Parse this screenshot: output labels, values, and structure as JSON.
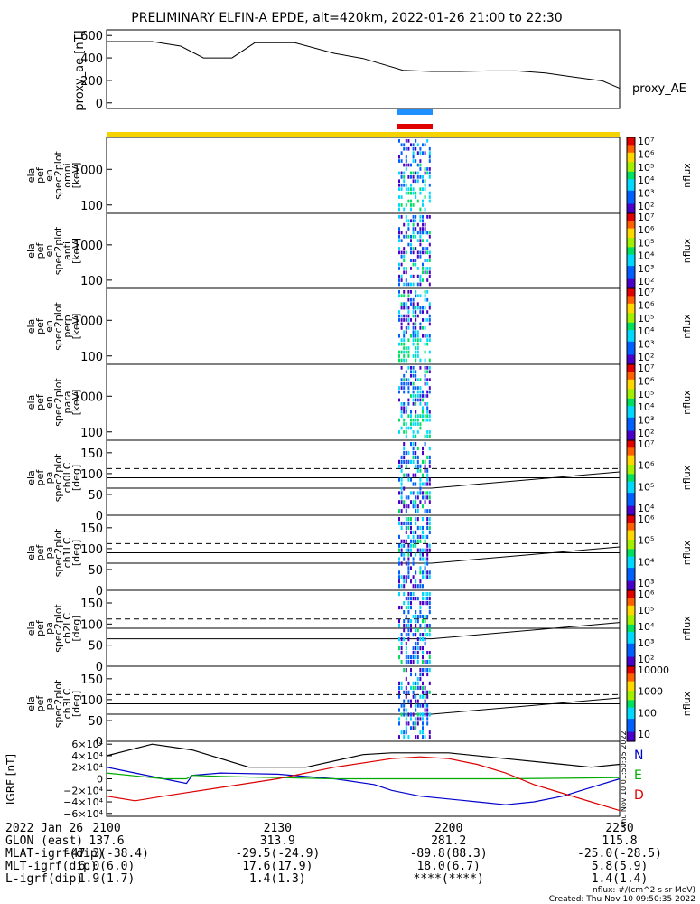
{
  "title": "PRELIMINARY ELFIN-A EPDE, alt=420km, 2022-01-26 21:00 to 22:30",
  "colors": {
    "bar_blue": "#1e90ff",
    "bar_red": "#e00000",
    "bar_yellow": "#f5d300",
    "field_N": "#0000cc",
    "field_E": "#00aa00",
    "field_D": "#dd0000",
    "field_total": "#000000"
  },
  "chart_data": [
    {
      "type": "line",
      "name": "proxy_ae",
      "ylabel": "proxy_ae [nT]",
      "legend": "proxy_AE",
      "ylim": [
        -50,
        650
      ],
      "yticks": [
        "600",
        "400",
        "200",
        "0"
      ],
      "x": [
        0,
        8,
        13,
        17,
        22,
        26,
        33,
        40,
        45,
        52,
        57,
        62,
        67,
        72,
        77,
        82,
        87,
        90
      ],
      "y": [
        545,
        545,
        505,
        400,
        400,
        535,
        535,
        440,
        395,
        290,
        280,
        280,
        285,
        285,
        265,
        230,
        195,
        130
      ]
    },
    {
      "type": "heatmap",
      "name": "omni",
      "ylabel": [
        "ela",
        "pef",
        "en",
        "spec2plot",
        "omni",
        "[keV]"
      ],
      "yticks": [
        "1000",
        "100"
      ],
      "colorbar": {
        "label": "nflux",
        "ticks": [
          "10⁷",
          "10⁶",
          "10⁵",
          "10⁴",
          "10³",
          "10²"
        ]
      }
    },
    {
      "type": "heatmap",
      "name": "anti",
      "ylabel": [
        "ela",
        "pef",
        "en",
        "spec2plot",
        "anti",
        "[keV]"
      ],
      "yticks": [
        "1000",
        "100"
      ],
      "colorbar": {
        "label": "nflux",
        "ticks": [
          "10⁷",
          "10⁶",
          "10⁵",
          "10⁴",
          "10³",
          "10²"
        ]
      }
    },
    {
      "type": "heatmap",
      "name": "perp",
      "ylabel": [
        "ela",
        "pef",
        "en",
        "spec2plot",
        "perp",
        "[keV]"
      ],
      "yticks": [
        "1000",
        "100"
      ],
      "colorbar": {
        "label": "nflux",
        "ticks": [
          "10⁷",
          "10⁶",
          "10⁵",
          "10⁴",
          "10³",
          "10²"
        ]
      }
    },
    {
      "type": "heatmap",
      "name": "para",
      "ylabel": [
        "ela",
        "pef",
        "en",
        "spec2plot",
        "para",
        "[keV]"
      ],
      "yticks": [
        "1000",
        "100"
      ],
      "colorbar": {
        "label": "nflux",
        "ticks": [
          "10⁷",
          "10⁶",
          "10⁵",
          "10⁴",
          "10³",
          "10²"
        ]
      }
    },
    {
      "type": "heatmap",
      "name": "ch0LC",
      "ylabel": [
        "ela",
        "pef",
        "pa",
        "spec2plot",
        "ch0LC",
        "[deg]"
      ],
      "yticks": [
        "150",
        "100",
        "50",
        "0"
      ],
      "colorbar": {
        "label": "nflux",
        "ticks": [
          "10⁷",
          "10⁶",
          "10⁵",
          "10⁴"
        ]
      }
    },
    {
      "type": "heatmap",
      "name": "ch1LC",
      "ylabel": [
        "ela",
        "pef",
        "pa",
        "spec2plot",
        "ch1LC",
        "[deg]"
      ],
      "yticks": [
        "150",
        "100",
        "50",
        "0"
      ],
      "colorbar": {
        "label": "nflux",
        "ticks": [
          "10⁶",
          "10⁵",
          "10⁴",
          "10³"
        ]
      }
    },
    {
      "type": "heatmap",
      "name": "ch2LC",
      "ylabel": [
        "ela",
        "pef",
        "pa",
        "spec2plot",
        "ch2LC",
        "[deg]"
      ],
      "yticks": [
        "150",
        "100",
        "50",
        "0"
      ],
      "colorbar": {
        "label": "nflux",
        "ticks": [
          "10⁶",
          "10⁵",
          "10⁴",
          "10³",
          "10²"
        ]
      }
    },
    {
      "type": "heatmap",
      "name": "ch3LC",
      "ylabel": [
        "ela",
        "pef",
        "pa",
        "spec2plot",
        "ch3LC",
        "[deg]"
      ],
      "yticks": [
        "150",
        "100",
        "50",
        "0"
      ],
      "colorbar": {
        "label": "nflux",
        "ticks": [
          "10000",
          "1000",
          "100",
          "10"
        ]
      }
    },
    {
      "type": "line",
      "name": "igrf",
      "ylabel": "IGRF [nT]",
      "ylim": [
        -65000,
        65000
      ],
      "yticks": [
        "6×10⁴",
        "4×10⁴",
        "2×10⁴",
        "0",
        "−2×10⁴",
        "−4×10⁴",
        "−6×10⁴"
      ],
      "legend": [
        "N",
        "E",
        "D"
      ],
      "series": [
        {
          "name": "N",
          "x": [
            0,
            5,
            10,
            14,
            15,
            20,
            30,
            40,
            47,
            50,
            55,
            60,
            65,
            70,
            75,
            80,
            85,
            90
          ],
          "y": [
            20000,
            10000,
            0,
            -8000,
            6000,
            10000,
            8000,
            0,
            -10000,
            -20000,
            -30000,
            -35000,
            -40000,
            -45000,
            -40000,
            -30000,
            -15000,
            0
          ]
        },
        {
          "name": "E",
          "x": [
            0,
            5,
            10,
            14,
            15,
            20,
            30,
            40,
            50,
            60,
            70,
            80,
            90
          ],
          "y": [
            10000,
            5000,
            0,
            0,
            6000,
            4000,
            2000,
            0,
            0,
            0,
            0,
            1000,
            2000
          ]
        },
        {
          "name": "D",
          "x": [
            0,
            5,
            10,
            20,
            30,
            40,
            50,
            55,
            60,
            65,
            70,
            75,
            80,
            85,
            90
          ],
          "y": [
            -30000,
            -38000,
            -30000,
            -15000,
            0,
            20000,
            35000,
            38000,
            35000,
            25000,
            10000,
            -10000,
            -25000,
            -40000,
            -55000
          ]
        },
        {
          "name": "total",
          "x": [
            0,
            8,
            15,
            25,
            35,
            45,
            50,
            55,
            60,
            70,
            80,
            85,
            90
          ],
          "y": [
            40000,
            60000,
            50000,
            20000,
            20000,
            42000,
            45000,
            45000,
            45000,
            35000,
            25000,
            20000,
            25000
          ]
        }
      ]
    }
  ],
  "orbit_table": {
    "rows": [
      {
        "label": "2022 Jan 26",
        "values": [
          "2100",
          "2130",
          "2200",
          "2230"
        ]
      },
      {
        "label": "GLON (east)",
        "values": [
          "137.6",
          "313.9",
          "281.2",
          "115.8"
        ]
      },
      {
        "label": "MLAT-igrf(dip)",
        "values": [
          "-47.3(-38.4)",
          "-29.5(-24.9)",
          "-89.8(88.3)",
          "-25.0(-28.5)"
        ]
      },
      {
        "label": "MLT-igrf(dip)",
        "values": [
          "6.0(6.0)",
          "17.6(17.9)",
          "18.0(6.7)",
          "5.8(5.9)"
        ]
      },
      {
        "label": "L-igrf(dip)",
        "values": [
          "1.9(1.7)",
          "1.4(1.3)",
          "****(****)",
          "1.4(1.4)"
        ]
      }
    ]
  },
  "footer": {
    "units": "nflux: #/(cm^2 s sr MeV)",
    "created": "Created: Thu Nov 10 09:50:35 2022"
  },
  "side_stamp": "Thu Nov 10 01:50:35 2022"
}
